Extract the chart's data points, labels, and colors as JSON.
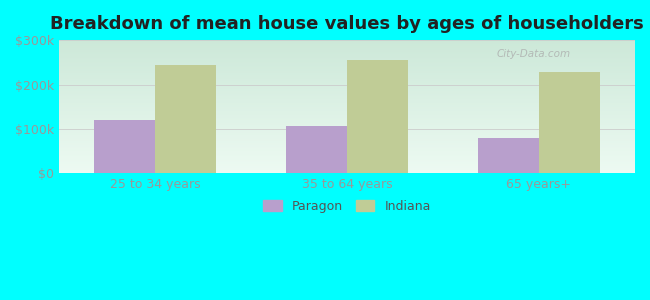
{
  "title": "Breakdown of mean house values by ages of householders",
  "categories": [
    "25 to 34 years",
    "35 to 64 years",
    "65 years+"
  ],
  "paragon_values": [
    120000,
    107000,
    80000
  ],
  "indiana_values": [
    243000,
    255000,
    228000
  ],
  "paragon_color": "#b89fcc",
  "indiana_color": "#c0cc96",
  "ylim": [
    0,
    300000
  ],
  "ytick_labels": [
    "$0",
    "$100k",
    "$200k",
    "$300k"
  ],
  "ytick_values": [
    0,
    100000,
    200000,
    300000
  ],
  "legend_labels": [
    "Paragon",
    "Indiana"
  ],
  "outer_bg": "#00ffff",
  "grad_top": "#cce8d8",
  "grad_bottom": "#edfaf2",
  "title_fontsize": 13,
  "bar_width": 0.32,
  "grid_color": "#cccccc",
  "tick_label_color": "#999999",
  "watermark": "City-Data.com"
}
